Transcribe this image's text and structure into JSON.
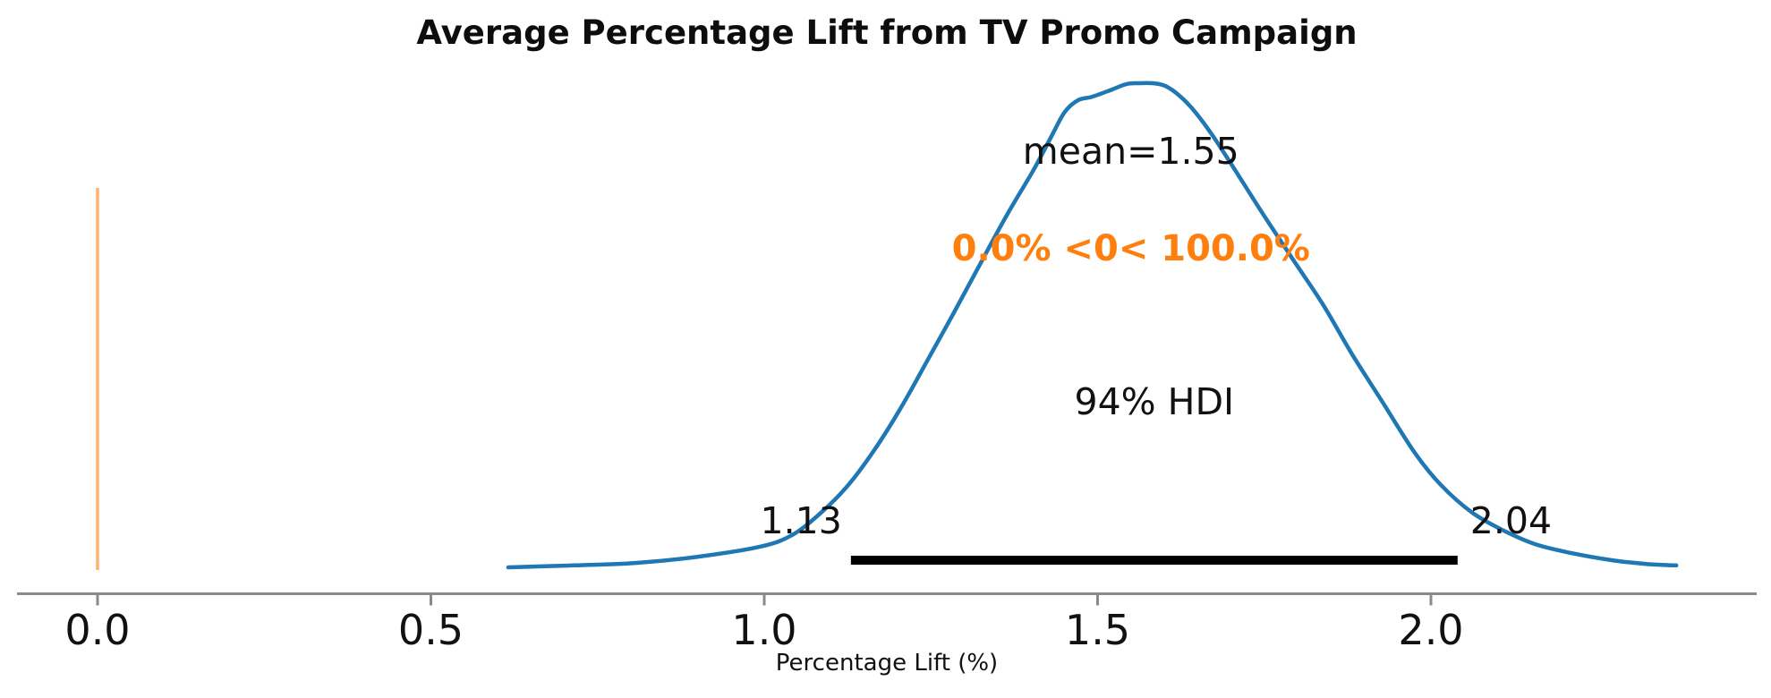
{
  "chart_data": {
    "type": "area",
    "kind": "kde-posterior-density",
    "title": "Average Percentage Lift from TV Promo Campaign",
    "xlabel": "Percentage Lift (%)",
    "grid": false,
    "legend": "none",
    "x_axis_range": [
      -0.12,
      2.49
    ],
    "x_ticks": [
      {
        "value": 0.0,
        "label": "0.0"
      },
      {
        "value": 0.5,
        "label": "0.5"
      },
      {
        "value": 1.0,
        "label": "1.0"
      },
      {
        "value": 1.5,
        "label": "1.5"
      },
      {
        "value": 2.0,
        "label": "2.0"
      }
    ],
    "mean": 1.55,
    "mean_label": "mean=1.55",
    "hdi": {
      "prob": 0.94,
      "label": "94% HDI",
      "lo": 1.13,
      "hi": 2.04,
      "lo_label": "1.13",
      "hi_label": "2.04"
    },
    "ref_val": {
      "value": 0.0,
      "label": "0.0% <0< 100.0%",
      "pct_below": "0.0%",
      "pct_above": "100.0%"
    },
    "colors": {
      "curve": "#1f77b4",
      "ref_line": "#ff7f0e",
      "ref_line_opacity": 0.6,
      "ref_text": "#ff7f0e",
      "hdi_bar": "#000000",
      "axis": "#8a8a8a",
      "text": "#111111"
    },
    "series": [
      {
        "name": "posterior_kde",
        "x": [
          0.616,
          0.714,
          0.807,
          0.901,
          0.995,
          1.042,
          1.082,
          1.123,
          1.163,
          1.203,
          1.243,
          1.284,
          1.324,
          1.364,
          1.404,
          1.431,
          1.451,
          1.471,
          1.492,
          1.518,
          1.543,
          1.561,
          1.583,
          1.602,
          1.623,
          1.646,
          1.673,
          1.706,
          1.749,
          1.793,
          1.838,
          1.881,
          1.928,
          1.975,
          2.015,
          2.062,
          2.109,
          2.156,
          2.209,
          2.27,
          2.323,
          2.368
        ],
        "density": [
          0.0,
          0.004,
          0.009,
          0.022,
          0.043,
          0.067,
          0.109,
          0.165,
          0.238,
          0.325,
          0.423,
          0.525,
          0.627,
          0.728,
          0.821,
          0.891,
          0.941,
          0.965,
          0.972,
          0.985,
          0.998,
          1.0,
          1.0,
          0.994,
          0.974,
          0.941,
          0.891,
          0.821,
          0.728,
          0.636,
          0.543,
          0.442,
          0.34,
          0.238,
          0.17,
          0.113,
          0.076,
          0.048,
          0.03,
          0.015,
          0.007,
          0.004
        ]
      }
    ]
  }
}
